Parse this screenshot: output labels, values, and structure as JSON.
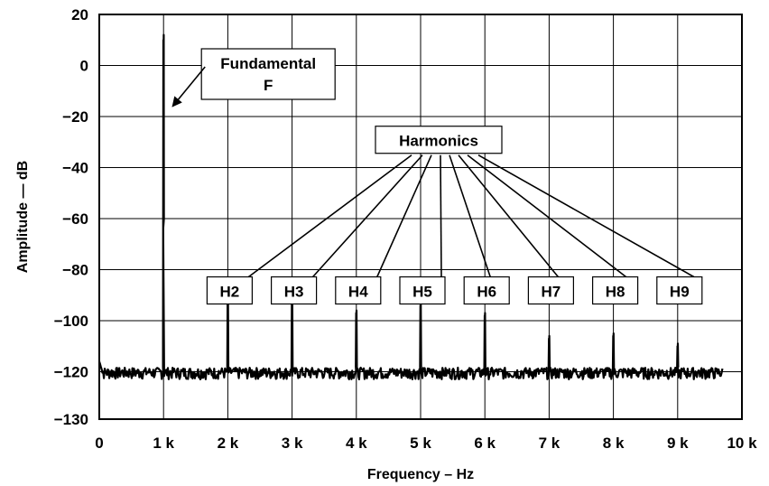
{
  "chart_data": {
    "type": "line",
    "title": "",
    "xlabel": "Frequency – Hz",
    "ylabel": "Amplitude — dB",
    "xlim": [
      0,
      10000
    ],
    "ylim": [
      -130,
      20
    ],
    "x_ticks": [
      0,
      1000,
      2000,
      3000,
      4000,
      5000,
      6000,
      7000,
      8000,
      9000,
      10000
    ],
    "x_tick_labels": [
      "0",
      "1 k",
      "2 k",
      "3 k",
      "4 k",
      "5 k",
      "6 k",
      "7 k",
      "8 k",
      "9 k",
      "10 k"
    ],
    "y_ticks": [
      20,
      0,
      -20,
      -40,
      -60,
      -80,
      -100,
      -120,
      -130
    ],
    "y_tick_labels": [
      "20",
      "0",
      "−20",
      "−40",
      "−60",
      "−80",
      "−100",
      "−120",
      "−130"
    ],
    "grid": true,
    "noise_floor_db": -120,
    "x_end": 9700,
    "series": [
      {
        "peaks": [
          {
            "freq": 1000,
            "amplitude": 0
          },
          {
            "freq": 2000,
            "amplitude": -94
          },
          {
            "freq": 3000,
            "amplitude": -93
          },
          {
            "freq": 4000,
            "amplitude": -101
          },
          {
            "freq": 5000,
            "amplitude": -98
          },
          {
            "freq": 6000,
            "amplitude": -102
          },
          {
            "freq": 7000,
            "amplitude": -111
          },
          {
            "freq": 8000,
            "amplitude": -110
          },
          {
            "freq": 9000,
            "amplitude": -114
          }
        ]
      }
    ],
    "annotations": {
      "fundamental": {
        "lines": [
          "Fundamental",
          "F"
        ],
        "freq": 1000
      },
      "harmonics_label": "Harmonics",
      "harmonics": [
        {
          "label": "H2",
          "freq": 2000
        },
        {
          "label": "H3",
          "freq": 3000
        },
        {
          "label": "H4",
          "freq": 4000
        },
        {
          "label": "H5",
          "freq": 5000
        },
        {
          "label": "H6",
          "freq": 6000
        },
        {
          "label": "H7",
          "freq": 7000
        },
        {
          "label": "H8",
          "freq": 8000
        },
        {
          "label": "H9",
          "freq": 9000
        }
      ]
    }
  }
}
